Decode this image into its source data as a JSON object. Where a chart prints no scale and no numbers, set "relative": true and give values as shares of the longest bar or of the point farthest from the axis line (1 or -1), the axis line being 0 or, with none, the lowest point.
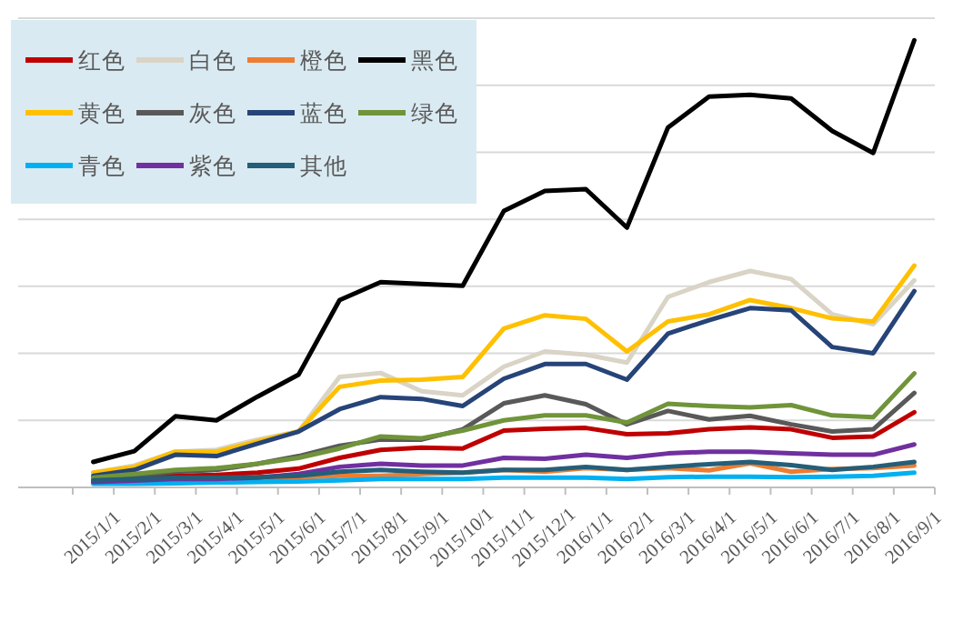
{
  "chart_data": {
    "type": "line",
    "relative": true,
    "grid": "y",
    "legend": "top left",
    "categories": [
      "2015/1/1",
      "2015/2/1",
      "2015/3/1",
      "2015/4/1",
      "2015/5/1",
      "2015/6/1",
      "2015/7/1",
      "2015/8/1",
      "2015/9/1",
      "2015/10/1",
      "2015/11/1",
      "2015/12/1",
      "2016/1/1",
      "2016/2/1",
      "2016/3/1",
      "2016/4/1",
      "2016/5/1",
      "2016/6/1",
      "2016/7/1",
      "2016/8/1",
      "2016/9/1"
    ],
    "series": [
      {
        "name": "红色",
        "color": "#c00000",
        "values": [
          0.012,
          0.019,
          0.026,
          0.028,
          0.033,
          0.042,
          0.066,
          0.084,
          0.089,
          0.087,
          0.127,
          0.131,
          0.133,
          0.119,
          0.121,
          0.13,
          0.134,
          0.13,
          0.111,
          0.114,
          0.168
        ]
      },
      {
        "name": "白色",
        "color": "#d9d4c6",
        "values": [
          0.033,
          0.049,
          0.08,
          0.084,
          0.107,
          0.125,
          0.247,
          0.256,
          0.215,
          0.206,
          0.27,
          0.304,
          0.297,
          0.279,
          0.426,
          0.459,
          0.484,
          0.466,
          0.387,
          0.365,
          0.463
        ]
      },
      {
        "name": "橙色",
        "color": "#ed7d31",
        "values": [
          null,
          null,
          null,
          0.019,
          0.019,
          0.022,
          0.026,
          0.026,
          0.03,
          0.033,
          0.039,
          0.035,
          0.043,
          0.039,
          0.043,
          0.038,
          0.054,
          0.035,
          0.041,
          0.043,
          0.049
        ]
      },
      {
        "name": "黑色",
        "color": "#000000",
        "values": [
          0.057,
          0.081,
          0.159,
          0.15,
          0.203,
          0.252,
          0.419,
          0.459,
          0.455,
          0.451,
          0.618,
          0.663,
          0.667,
          0.581,
          0.805,
          0.874,
          0.878,
          0.87,
          0.797,
          0.748,
          1
        ]
      },
      {
        "name": "黄色",
        "color": "#ffc000",
        "values": [
          0.033,
          0.046,
          0.08,
          0.08,
          0.103,
          0.125,
          0.225,
          0.239,
          0.241,
          0.247,
          0.355,
          0.385,
          0.377,
          0.304,
          0.371,
          0.387,
          0.419,
          0.401,
          0.378,
          0.371,
          0.496
        ]
      },
      {
        "name": "灰色",
        "color": "#595959",
        "values": [
          0.019,
          0.026,
          0.035,
          0.039,
          0.053,
          0.07,
          0.093,
          0.107,
          0.107,
          0.13,
          0.188,
          0.206,
          0.186,
          0.141,
          0.171,
          0.152,
          0.16,
          0.141,
          0.125,
          0.13,
          0.211
        ]
      },
      {
        "name": "蓝色",
        "color": "#264478",
        "values": [
          0.026,
          0.039,
          0.073,
          0.07,
          0.098,
          0.125,
          0.175,
          0.202,
          0.198,
          0.182,
          0.243,
          0.276,
          0.276,
          0.241,
          0.344,
          0.374,
          0.401,
          0.396,
          0.314,
          0.3,
          0.439
        ]
      },
      {
        "name": "绿色",
        "color": "#70943a",
        "values": [
          0.022,
          0.03,
          0.039,
          0.043,
          0.053,
          0.066,
          0.087,
          0.114,
          0.11,
          0.127,
          0.15,
          0.161,
          0.161,
          0.145,
          0.187,
          0.182,
          0.179,
          0.184,
          0.161,
          0.157,
          0.255
        ]
      },
      {
        "name": "青色",
        "color": "#00b0f0",
        "values": [
          0.008,
          0.008,
          0.009,
          0.011,
          0.012,
          0.013,
          0.016,
          0.019,
          0.019,
          0.019,
          0.022,
          0.022,
          0.022,
          0.019,
          0.023,
          0.024,
          0.024,
          0.023,
          0.024,
          0.026,
          0.033
        ]
      },
      {
        "name": "紫色",
        "color": "#7030a0",
        "values": [
          0.012,
          0.015,
          0.019,
          0.019,
          0.022,
          0.03,
          0.046,
          0.053,
          0.049,
          0.049,
          0.066,
          0.064,
          0.073,
          0.066,
          0.076,
          0.08,
          0.08,
          0.076,
          0.073,
          0.073,
          0.096
        ]
      },
      {
        "name": "其他",
        "color": "#255e78",
        "values": [
          0.016,
          0.019,
          0.022,
          0.022,
          0.023,
          0.026,
          0.035,
          0.039,
          0.035,
          0.033,
          0.039,
          0.039,
          0.046,
          0.039,
          0.046,
          0.052,
          0.057,
          0.05,
          0.039,
          0.046,
          0.057
        ]
      }
    ]
  }
}
